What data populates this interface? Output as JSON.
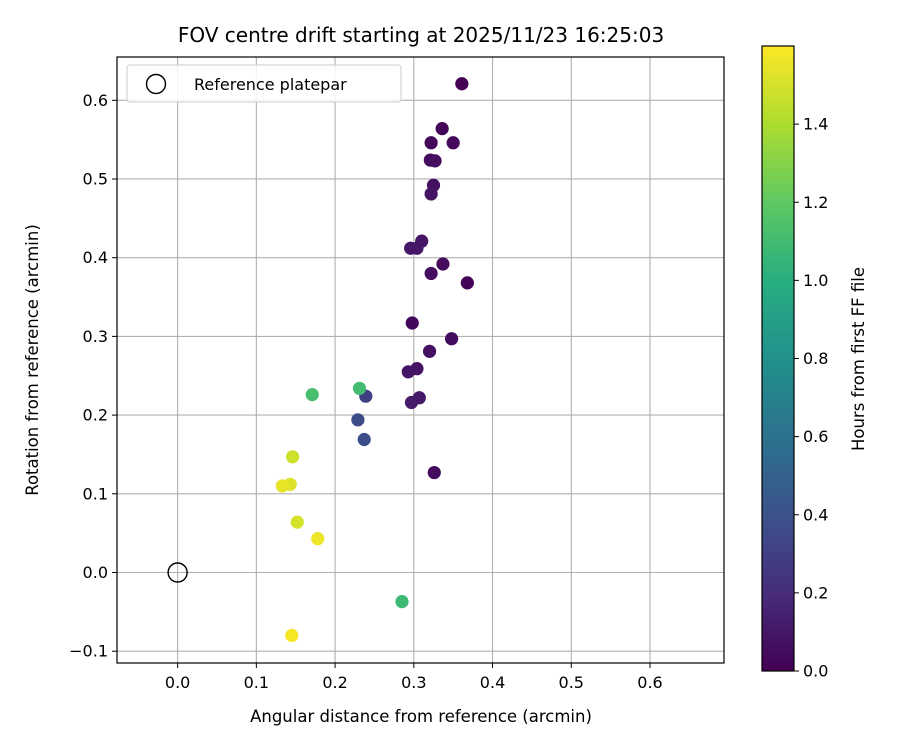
{
  "chart_data": {
    "type": "scatter",
    "title": "FOV centre drift starting at 2025/11/23 16:25:03",
    "xlabel": "Angular distance from reference (arcmin)",
    "ylabel": "Rotation from reference (arcmin)",
    "xlim": [
      -0.077,
      0.694
    ],
    "ylim": [
      -0.115,
      0.655
    ],
    "xticks": [
      0.0,
      0.1,
      0.2,
      0.3,
      0.4,
      0.5,
      0.6
    ],
    "xtick_labels": [
      "0.0",
      "0.1",
      "0.2",
      "0.3",
      "0.4",
      "0.5",
      "0.6"
    ],
    "yticks": [
      -0.1,
      0.0,
      0.1,
      0.2,
      0.3,
      0.4,
      0.5,
      0.6
    ],
    "ytick_labels": [
      "−0.1",
      "0.0",
      "0.1",
      "0.2",
      "0.3",
      "0.4",
      "0.5",
      "0.6"
    ],
    "grid": true,
    "legend": {
      "location": "top-left",
      "entries": [
        "Reference platepar"
      ]
    },
    "reference_point": {
      "x": 0.0,
      "y": 0.0,
      "name": "Reference platepar"
    },
    "colorbar": {
      "label": "Hours from first FF file",
      "colormap": "viridis",
      "min": 0.0,
      "max": 1.6,
      "ticks": [
        0.0,
        0.2,
        0.4,
        0.6,
        0.8,
        1.0,
        1.2,
        1.4
      ],
      "tick_labels": [
        "0.0",
        "0.2",
        "0.4",
        "0.6",
        "0.8",
        "1.0",
        "1.2",
        "1.4"
      ]
    },
    "points": [
      {
        "x": 0.361,
        "y": 0.621,
        "hours": 0.0
      },
      {
        "x": 0.336,
        "y": 0.564,
        "hours": 0.02
      },
      {
        "x": 0.322,
        "y": 0.546,
        "hours": 0.03
      },
      {
        "x": 0.35,
        "y": 0.546,
        "hours": 0.04
      },
      {
        "x": 0.321,
        "y": 0.524,
        "hours": 0.05
      },
      {
        "x": 0.327,
        "y": 0.523,
        "hours": 0.06
      },
      {
        "x": 0.325,
        "y": 0.492,
        "hours": 0.07
      },
      {
        "x": 0.322,
        "y": 0.481,
        "hours": 0.08
      },
      {
        "x": 0.31,
        "y": 0.421,
        "hours": 0.09
      },
      {
        "x": 0.296,
        "y": 0.412,
        "hours": 0.1
      },
      {
        "x": 0.304,
        "y": 0.412,
        "hours": 0.1
      },
      {
        "x": 0.337,
        "y": 0.392,
        "hours": 0.04
      },
      {
        "x": 0.322,
        "y": 0.38,
        "hours": 0.06
      },
      {
        "x": 0.368,
        "y": 0.368,
        "hours": 0.01
      },
      {
        "x": 0.298,
        "y": 0.317,
        "hours": 0.03
      },
      {
        "x": 0.348,
        "y": 0.297,
        "hours": 0.05
      },
      {
        "x": 0.32,
        "y": 0.281,
        "hours": 0.07
      },
      {
        "x": 0.304,
        "y": 0.259,
        "hours": 0.08
      },
      {
        "x": 0.293,
        "y": 0.255,
        "hours": 0.09
      },
      {
        "x": 0.307,
        "y": 0.222,
        "hours": 0.11
      },
      {
        "x": 0.297,
        "y": 0.216,
        "hours": 0.12
      },
      {
        "x": 0.326,
        "y": 0.127,
        "hours": 0.05
      },
      {
        "x": 0.239,
        "y": 0.224,
        "hours": 0.3
      },
      {
        "x": 0.229,
        "y": 0.194,
        "hours": 0.36
      },
      {
        "x": 0.237,
        "y": 0.169,
        "hours": 0.38
      },
      {
        "x": 0.231,
        "y": 0.234,
        "hours": 1.1
      },
      {
        "x": 0.171,
        "y": 0.226,
        "hours": 1.12
      },
      {
        "x": 0.285,
        "y": -0.037,
        "hours": 1.08
      },
      {
        "x": 0.146,
        "y": 0.147,
        "hours": 1.48
      },
      {
        "x": 0.143,
        "y": 0.112,
        "hours": 1.52
      },
      {
        "x": 0.133,
        "y": 0.11,
        "hours": 1.55
      },
      {
        "x": 0.152,
        "y": 0.064,
        "hours": 1.5
      },
      {
        "x": 0.178,
        "y": 0.043,
        "hours": 1.56
      },
      {
        "x": 0.145,
        "y": -0.08,
        "hours": 1.58
      }
    ]
  }
}
